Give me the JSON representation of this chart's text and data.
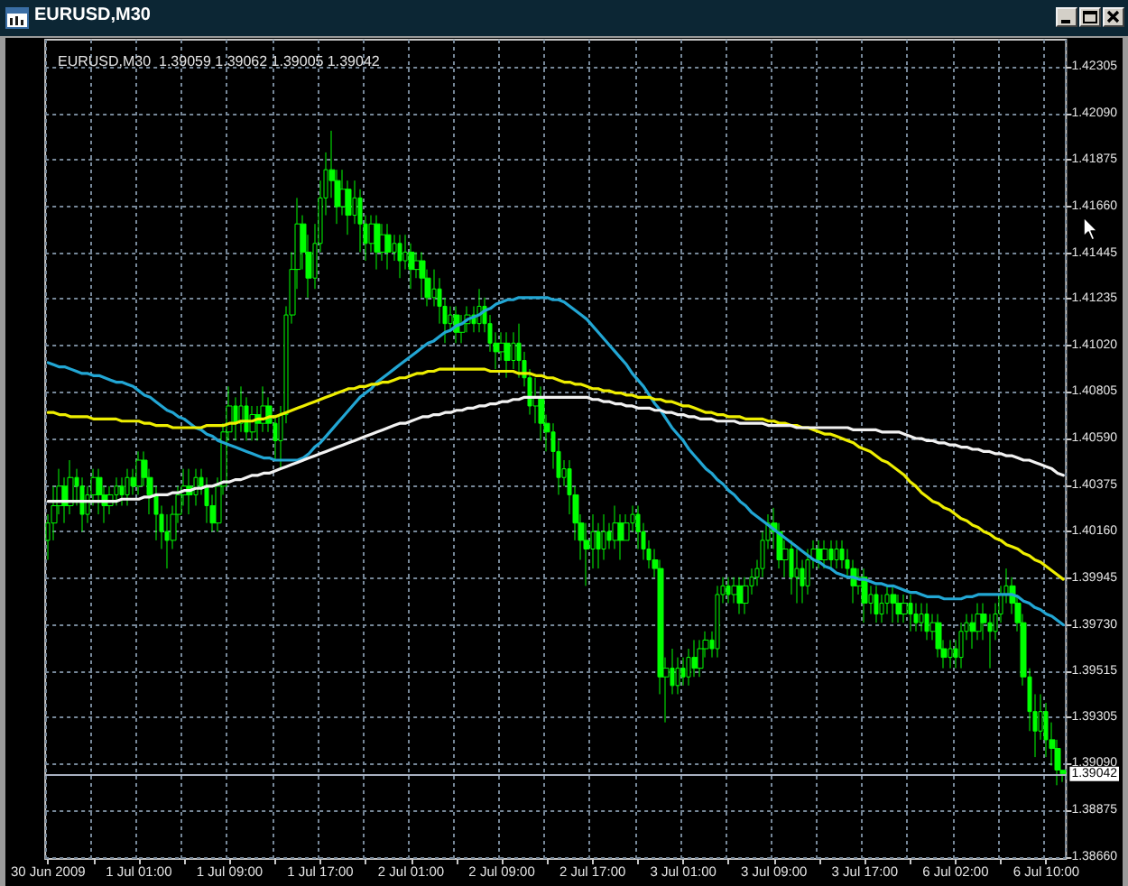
{
  "chart_data": {
    "type": "candlestick",
    "title": "EURUSD,M30",
    "subtitle": "EURUSD,M30  1.39059 1.39062 1.39005 1.39042",
    "color": "#00ff00",
    "categories": [
      "30 Jun 2009",
      null,
      null,
      null,
      null,
      null,
      null,
      null,
      null,
      null,
      null,
      null,
      null,
      null,
      null,
      null,
      "1 Jul 01:00",
      null,
      null,
      null,
      null,
      null,
      null,
      null,
      null,
      null,
      null,
      null,
      null,
      null,
      null,
      null,
      "1 Jul 09:00",
      null,
      null,
      null,
      null,
      null,
      null,
      null,
      null,
      null,
      null,
      null,
      null,
      null,
      null,
      null,
      "1 Jul 17:00",
      null,
      null,
      null,
      null,
      null,
      null,
      null,
      null,
      null,
      null,
      null,
      null,
      null,
      null,
      null,
      "2 Jul 01:00",
      null,
      null,
      null,
      null,
      null,
      null,
      null,
      null,
      null,
      null,
      null,
      null,
      null,
      null,
      null,
      "2 Jul 09:00",
      null,
      null,
      null,
      null,
      null,
      null,
      null,
      null,
      null,
      null,
      null,
      null,
      null,
      null,
      null,
      "2 Jul 17:00",
      null,
      null,
      null,
      null,
      null,
      null,
      null,
      null,
      null,
      null,
      null,
      null,
      null,
      null,
      null,
      "3 Jul 01:00",
      null,
      null,
      null,
      null,
      null,
      null,
      null,
      null,
      null,
      null,
      null,
      null,
      null,
      null,
      null,
      "3 Jul 09:00",
      null,
      null,
      null,
      null,
      null,
      null,
      null,
      null,
      null,
      null,
      null,
      null,
      null,
      null,
      null,
      "3 Jul 17:00",
      null,
      null,
      null,
      null,
      null,
      null,
      null,
      null,
      null,
      null,
      null,
      null,
      null,
      null,
      null,
      "6 Jul 02:00",
      null,
      null,
      null,
      null,
      null,
      null,
      null,
      null,
      null,
      null,
      null,
      null,
      null,
      null,
      null,
      "6 Jul 10:00",
      null,
      null,
      null
    ],
    "ohlc": [
      [
        1.4012,
        1.4024,
        1.4003,
        1.402
      ],
      [
        1.402,
        1.4037,
        1.4012,
        1.4028
      ],
      [
        1.4028,
        1.4045,
        1.4024,
        1.4037
      ],
      [
        1.4037,
        1.4041,
        1.402,
        1.4028
      ],
      [
        1.4028,
        1.4049,
        1.4024,
        1.4041
      ],
      [
        1.4041,
        1.4045,
        1.4028,
        1.4037
      ],
      [
        1.4037,
        1.4041,
        1.4016,
        1.4024
      ],
      [
        1.4024,
        1.4037,
        1.402,
        1.4033
      ],
      [
        1.4033,
        1.4045,
        1.4028,
        1.4041
      ],
      [
        1.4041,
        1.4045,
        1.4024,
        1.4033
      ],
      [
        1.4033,
        1.4037,
        1.402,
        1.4028
      ],
      [
        1.4028,
        1.4037,
        1.4024,
        1.4033
      ],
      [
        1.4033,
        1.4041,
        1.4028,
        1.4037
      ],
      [
        1.4037,
        1.4041,
        1.4028,
        1.4033
      ],
      [
        1.4033,
        1.4045,
        1.4028,
        1.4041
      ],
      [
        1.4041,
        1.4045,
        1.4033,
        1.4037
      ],
      [
        1.4037,
        1.4053,
        1.4033,
        1.4049
      ],
      [
        1.4049,
        1.4053,
        1.4037,
        1.4041
      ],
      [
        1.4041,
        1.4045,
        1.4024,
        1.4033
      ],
      [
        1.4033,
        1.4037,
        1.4012,
        1.4024
      ],
      [
        1.4024,
        1.4028,
        1.4008,
        1.4016
      ],
      [
        1.4016,
        1.4024,
        1.3999,
        1.4012
      ],
      [
        1.4012,
        1.4028,
        1.4008,
        1.4024
      ],
      [
        1.4024,
        1.4037,
        1.402,
        1.4033
      ],
      [
        1.4033,
        1.4045,
        1.4028,
        1.4037
      ],
      [
        1.4037,
        1.4045,
        1.4024,
        1.4033
      ],
      [
        1.4033,
        1.4045,
        1.4028,
        1.4041
      ],
      [
        1.4041,
        1.4045,
        1.4033,
        1.4037
      ],
      [
        1.4037,
        1.4041,
        1.402,
        1.4028
      ],
      [
        1.4028,
        1.4033,
        1.4016,
        1.402
      ],
      [
        1.402,
        1.4041,
        1.4016,
        1.4037
      ],
      [
        1.4037,
        1.4066,
        1.4033,
        1.4062
      ],
      [
        1.4062,
        1.4083,
        1.4058,
        1.4074
      ],
      [
        1.4074,
        1.4078,
        1.4058,
        1.4066
      ],
      [
        1.4066,
        1.4083,
        1.4062,
        1.4074
      ],
      [
        1.4074,
        1.4078,
        1.4058,
        1.4062
      ],
      [
        1.4062,
        1.4074,
        1.4058,
        1.407
      ],
      [
        1.407,
        1.4074,
        1.4058,
        1.4066
      ],
      [
        1.4066,
        1.4083,
        1.4062,
        1.4074
      ],
      [
        1.4074,
        1.4078,
        1.4062,
        1.4066
      ],
      [
        1.4066,
        1.407,
        1.4049,
        1.4058
      ],
      [
        1.4058,
        1.4074,
        1.4045,
        1.407
      ],
      [
        1.407,
        1.412,
        1.4066,
        1.4116
      ],
      [
        1.4116,
        1.4145,
        1.4112,
        1.4137
      ],
      [
        1.4137,
        1.417,
        1.4128,
        1.4158
      ],
      [
        1.4158,
        1.4162,
        1.4137,
        1.4145
      ],
      [
        1.4145,
        1.4153,
        1.4124,
        1.4133
      ],
      [
        1.4133,
        1.4158,
        1.4128,
        1.4149
      ],
      [
        1.4149,
        1.4178,
        1.4145,
        1.417
      ],
      [
        1.417,
        1.4191,
        1.4162,
        1.4183
      ],
      [
        1.4183,
        1.4201,
        1.417,
        1.4178
      ],
      [
        1.4178,
        1.4183,
        1.4158,
        1.4166
      ],
      [
        1.4166,
        1.4183,
        1.4162,
        1.4174
      ],
      [
        1.4174,
        1.4178,
        1.4153,
        1.4162
      ],
      [
        1.4162,
        1.4178,
        1.4158,
        1.417
      ],
      [
        1.417,
        1.4174,
        1.4145,
        1.4158
      ],
      [
        1.4158,
        1.4162,
        1.4141,
        1.4149
      ],
      [
        1.4149,
        1.4162,
        1.4145,
        1.4158
      ],
      [
        1.4158,
        1.4162,
        1.4137,
        1.4145
      ],
      [
        1.4145,
        1.4158,
        1.4141,
        1.4153
      ],
      [
        1.4153,
        1.4158,
        1.4137,
        1.4145
      ],
      [
        1.4145,
        1.4153,
        1.4141,
        1.4149
      ],
      [
        1.4149,
        1.4153,
        1.4133,
        1.4141
      ],
      [
        1.4141,
        1.4153,
        1.4137,
        1.4145
      ],
      [
        1.4145,
        1.4149,
        1.4128,
        1.4137
      ],
      [
        1.4137,
        1.4145,
        1.4133,
        1.4141
      ],
      [
        1.4141,
        1.4145,
        1.4124,
        1.4133
      ],
      [
        1.4133,
        1.4137,
        1.412,
        1.4124
      ],
      [
        1.4124,
        1.4137,
        1.412,
        1.4128
      ],
      [
        1.4128,
        1.4133,
        1.4112,
        1.412
      ],
      [
        1.412,
        1.4124,
        1.4103,
        1.4112
      ],
      [
        1.4112,
        1.412,
        1.4108,
        1.4116
      ],
      [
        1.4116,
        1.412,
        1.4103,
        1.4108
      ],
      [
        1.4108,
        1.4116,
        1.4103,
        1.4112
      ],
      [
        1.4112,
        1.412,
        1.4108,
        1.4116
      ],
      [
        1.4116,
        1.412,
        1.4108,
        1.4112
      ],
      [
        1.4112,
        1.4128,
        1.4108,
        1.412
      ],
      [
        1.412,
        1.4124,
        1.4108,
        1.4112
      ],
      [
        1.4112,
        1.4116,
        1.4099,
        1.4103
      ],
      [
        1.4103,
        1.4108,
        1.4091,
        1.4099
      ],
      [
        1.4099,
        1.4108,
        1.4095,
        1.4103
      ],
      [
        1.4103,
        1.4108,
        1.4087,
        1.4095
      ],
      [
        1.4095,
        1.4108,
        1.4091,
        1.4103
      ],
      [
        1.4103,
        1.4112,
        1.4087,
        1.4095
      ],
      [
        1.4095,
        1.4099,
        1.4083,
        1.4087
      ],
      [
        1.4087,
        1.4091,
        1.407,
        1.4074
      ],
      [
        1.4074,
        1.4087,
        1.4066,
        1.4078
      ],
      [
        1.4078,
        1.4083,
        1.4058,
        1.4066
      ],
      [
        1.4066,
        1.407,
        1.4053,
        1.4062
      ],
      [
        1.4062,
        1.4066,
        1.4045,
        1.4053
      ],
      [
        1.4053,
        1.4058,
        1.4033,
        1.4041
      ],
      [
        1.4041,
        1.4049,
        1.4037,
        1.4045
      ],
      [
        1.4045,
        1.4049,
        1.4024,
        1.4033
      ],
      [
        1.4033,
        1.4037,
        1.4012,
        1.402
      ],
      [
        1.402,
        1.4024,
        1.4003,
        1.4012
      ],
      [
        1.4012,
        1.402,
        1.3991,
        1.4008
      ],
      [
        1.4008,
        1.4024,
        1.3999,
        1.4016
      ],
      [
        1.4016,
        1.402,
        1.3999,
        1.4008
      ],
      [
        1.4008,
        1.4024,
        1.4003,
        1.4016
      ],
      [
        1.4016,
        1.402,
        1.4008,
        1.4012
      ],
      [
        1.4012,
        1.4028,
        1.4008,
        1.402
      ],
      [
        1.402,
        1.4024,
        1.4003,
        1.4012
      ],
      [
        1.4012,
        1.4024,
        1.4012,
        1.402
      ],
      [
        1.402,
        1.4028,
        1.4016,
        1.4024
      ],
      [
        1.4024,
        1.4028,
        1.4008,
        1.4016
      ],
      [
        1.4016,
        1.402,
        1.4003,
        1.4008
      ],
      [
        1.4008,
        1.4012,
        1.3999,
        1.4003
      ],
      [
        1.4003,
        1.4008,
        1.3995,
        1.3999
      ],
      [
        1.3999,
        1.4003,
        1.3941,
        1.3949
      ],
      [
        1.3949,
        1.3958,
        1.3928,
        1.3953
      ],
      [
        1.3953,
        1.3962,
        1.3941,
        1.3945
      ],
      [
        1.3945,
        1.3958,
        1.3941,
        1.3953
      ],
      [
        1.3953,
        1.3958,
        1.3945,
        1.3949
      ],
      [
        1.3949,
        1.3962,
        1.3945,
        1.3958
      ],
      [
        1.3958,
        1.3966,
        1.3949,
        1.3953
      ],
      [
        1.3953,
        1.3966,
        1.3949,
        1.3962
      ],
      [
        1.3962,
        1.397,
        1.3958,
        1.3966
      ],
      [
        1.3966,
        1.397,
        1.3958,
        1.3962
      ],
      [
        1.3962,
        1.3991,
        1.3958,
        1.3987
      ],
      [
        1.3987,
        1.3995,
        1.3983,
        1.3991
      ],
      [
        1.3991,
        1.3995,
        1.3983,
        1.3987
      ],
      [
        1.3987,
        1.3995,
        1.3983,
        1.3991
      ],
      [
        1.3991,
        1.3995,
        1.3978,
        1.3983
      ],
      [
        1.3983,
        1.3995,
        1.3978,
        1.3991
      ],
      [
        1.3991,
        1.3999,
        1.3987,
        1.3995
      ],
      [
        1.3995,
        1.4003,
        1.3991,
        1.3999
      ],
      [
        1.3999,
        1.4016,
        1.3995,
        1.4012
      ],
      [
        1.4012,
        1.4024,
        1.4008,
        1.402
      ],
      [
        1.402,
        1.4027,
        1.4008,
        1.4016
      ],
      [
        1.4016,
        1.402,
        1.3999,
        1.4003
      ],
      [
        1.4003,
        1.4012,
        1.3995,
        1.4008
      ],
      [
        1.4008,
        1.4012,
        1.3987,
        1.3995
      ],
      [
        1.3995,
        1.4008,
        1.3983,
        1.3999
      ],
      [
        1.3999,
        1.4003,
        1.3983,
        1.3991
      ],
      [
        1.3991,
        1.4008,
        1.3987,
        1.4003
      ],
      [
        1.4003,
        1.4012,
        1.3999,
        1.4008
      ],
      [
        1.4008,
        1.4012,
        1.3999,
        1.4003
      ],
      [
        1.4003,
        1.4012,
        1.3999,
        1.4008
      ],
      [
        1.4008,
        1.4012,
        1.3999,
        1.4003
      ],
      [
        1.4003,
        1.4012,
        1.3999,
        1.4008
      ],
      [
        1.4008,
        1.4012,
        1.3999,
        1.4003
      ],
      [
        1.4003,
        1.4008,
        1.3995,
        1.3999
      ],
      [
        1.3999,
        1.4003,
        1.3983,
        1.3991
      ],
      [
        1.3991,
        1.3999,
        1.3987,
        1.3995
      ],
      [
        1.3995,
        1.3999,
        1.3974,
        1.3983
      ],
      [
        1.3983,
        1.3991,
        1.3978,
        1.3987
      ],
      [
        1.3987,
        1.3991,
        1.3974,
        1.3978
      ],
      [
        1.3978,
        1.3987,
        1.3974,
        1.3983
      ],
      [
        1.3983,
        1.3991,
        1.3978,
        1.3987
      ],
      [
        1.3987,
        1.3991,
        1.3974,
        1.3983
      ],
      [
        1.3983,
        1.3987,
        1.3974,
        1.3978
      ],
      [
        1.3978,
        1.3987,
        1.3974,
        1.3983
      ],
      [
        1.3983,
        1.3987,
        1.397,
        1.3978
      ],
      [
        1.3978,
        1.3983,
        1.397,
        1.3974
      ],
      [
        1.3974,
        1.3983,
        1.397,
        1.3978
      ],
      [
        1.3978,
        1.3983,
        1.3966,
        1.397
      ],
      [
        1.397,
        1.3978,
        1.3966,
        1.3974
      ],
      [
        1.3974,
        1.3978,
        1.3958,
        1.3962
      ],
      [
        1.3962,
        1.3966,
        1.3953,
        1.3958
      ],
      [
        1.3958,
        1.3966,
        1.3953,
        1.3962
      ],
      [
        1.3962,
        1.3966,
        1.3953,
        1.3958
      ],
      [
        1.3958,
        1.3974,
        1.3953,
        1.397
      ],
      [
        1.397,
        1.3978,
        1.3966,
        1.3974
      ],
      [
        1.3974,
        1.3978,
        1.3962,
        1.397
      ],
      [
        1.397,
        1.3983,
        1.3966,
        1.3978
      ],
      [
        1.3978,
        1.3983,
        1.3966,
        1.3974
      ],
      [
        1.3974,
        1.3978,
        1.3953,
        1.397
      ],
      [
        1.397,
        1.3983,
        1.3966,
        1.3978
      ],
      [
        1.3978,
        1.3991,
        1.3974,
        1.3987
      ],
      [
        1.3987,
        1.3999,
        1.3983,
        1.3991
      ],
      [
        1.3991,
        1.3995,
        1.3978,
        1.3983
      ],
      [
        1.3983,
        1.3987,
        1.397,
        1.3974
      ],
      [
        1.3974,
        1.3978,
        1.3945,
        1.3949
      ],
      [
        1.3949,
        1.3953,
        1.3924,
        1.3933
      ],
      [
        1.3933,
        1.3941,
        1.3912,
        1.3924
      ],
      [
        1.3924,
        1.3941,
        1.392,
        1.3933
      ],
      [
        1.3933,
        1.3937,
        1.3912,
        1.392
      ],
      [
        1.392,
        1.3928,
        1.3908,
        1.3916
      ],
      [
        1.3916,
        1.392,
        1.3899,
        1.3906
      ],
      [
        1.39059,
        1.39062,
        1.39005,
        1.39042
      ]
    ],
    "series": [
      {
        "type": "line",
        "color": "#22a6d4",
        "values": [
          1.4094,
          1.4093,
          1.4092,
          1.4092,
          1.4091,
          1.409,
          1.4089,
          1.4089,
          1.4088,
          1.4088,
          1.4087,
          1.4086,
          1.4085,
          1.4085,
          1.4084,
          1.4083,
          1.4081,
          1.4079,
          1.4078,
          1.4076,
          1.4074,
          1.4072,
          1.4071,
          1.4069,
          1.4068,
          1.4066,
          1.4064,
          1.4063,
          1.4061,
          1.406,
          1.4058,
          1.4057,
          1.4056,
          1.4055,
          1.4054,
          1.4053,
          1.4052,
          1.4051,
          1.405,
          1.405,
          1.4049,
          1.4049,
          1.4049,
          1.4049,
          1.4049,
          1.405,
          1.4052,
          1.4055,
          1.4057,
          1.406,
          1.4063,
          1.4066,
          1.4069,
          1.4072,
          1.4075,
          1.4078,
          1.408,
          1.4082,
          1.4085,
          1.4087,
          1.4089,
          1.4091,
          1.4093,
          1.4095,
          1.4097,
          1.4099,
          1.4101,
          1.4103,
          1.4104,
          1.4106,
          1.4108,
          1.4109,
          1.4111,
          1.4112,
          1.4114,
          1.4115,
          1.4116,
          1.4118,
          1.4119,
          1.4121,
          1.4122,
          1.4123,
          1.4123,
          1.4124,
          1.4124,
          1.4124,
          1.4124,
          1.4124,
          1.4124,
          1.4123,
          1.4123,
          1.4122,
          1.412,
          1.4118,
          1.4116,
          1.4114,
          1.4111,
          1.4108,
          1.4105,
          1.4102,
          1.4099,
          1.4096,
          1.4093,
          1.4089,
          1.4086,
          1.4083,
          1.4079,
          1.4075,
          1.4072,
          1.4068,
          1.4064,
          1.4061,
          1.4058,
          1.4054,
          1.4051,
          1.4048,
          1.4045,
          1.4043,
          1.404,
          1.4038,
          1.4035,
          1.4033,
          1.403,
          1.4028,
          1.4025,
          1.4023,
          1.4021,
          1.4019,
          1.4017,
          1.4015,
          1.4013,
          1.4011,
          1.4009,
          1.4007,
          1.4005,
          1.4003,
          1.4002,
          1.4,
          1.3999,
          1.3997,
          1.3996,
          1.3995,
          1.3995,
          1.3994,
          1.3994,
          1.3993,
          1.3992,
          1.3992,
          1.3991,
          1.3991,
          1.399,
          1.3989,
          1.3988,
          1.3988,
          1.3987,
          1.3986,
          1.3986,
          1.3986,
          1.3985,
          1.3985,
          1.3985,
          1.3985,
          1.3986,
          1.3986,
          1.3987,
          1.3987,
          1.3987,
          1.3987,
          1.3987,
          1.3987,
          1.3987,
          1.3986,
          1.3984,
          1.3983,
          1.3981,
          1.398,
          1.3978,
          1.3977,
          1.3975,
          1.3973
        ]
      },
      {
        "type": "line",
        "color": "#eeee00",
        "values": [
          1.4071,
          1.4071,
          1.407,
          1.407,
          1.4069,
          1.4069,
          1.4069,
          1.4069,
          1.4068,
          1.4068,
          1.4068,
          1.4068,
          1.4068,
          1.4067,
          1.4067,
          1.4067,
          1.4067,
          1.4066,
          1.4066,
          1.4065,
          1.4065,
          1.4065,
          1.4064,
          1.4064,
          1.4064,
          1.4064,
          1.4064,
          1.4064,
          1.4065,
          1.4065,
          1.4065,
          1.4065,
          1.4066,
          1.4066,
          1.4067,
          1.4067,
          1.4067,
          1.4068,
          1.4068,
          1.4069,
          1.4069,
          1.407,
          1.4071,
          1.4072,
          1.4073,
          1.4074,
          1.4075,
          1.4076,
          1.4077,
          1.4078,
          1.4079,
          1.408,
          1.4081,
          1.4082,
          1.4082,
          1.4083,
          1.4083,
          1.4084,
          1.4084,
          1.4085,
          1.4085,
          1.4086,
          1.4087,
          1.4087,
          1.4088,
          1.4089,
          1.4089,
          1.409,
          1.409,
          1.4091,
          1.4091,
          1.4091,
          1.4091,
          1.4091,
          1.4091,
          1.4091,
          1.4091,
          1.4091,
          1.409,
          1.409,
          1.409,
          1.409,
          1.409,
          1.4089,
          1.4089,
          1.4089,
          1.4088,
          1.4088,
          1.4087,
          1.4087,
          1.4086,
          1.4085,
          1.4085,
          1.4084,
          1.4084,
          1.4083,
          1.4082,
          1.4082,
          1.4081,
          1.4081,
          1.408,
          1.408,
          1.4079,
          1.4079,
          1.4078,
          1.4078,
          1.4078,
          1.4077,
          1.4077,
          1.4076,
          1.4076,
          1.4075,
          1.4074,
          1.4074,
          1.4073,
          1.4072,
          1.4071,
          1.4071,
          1.407,
          1.407,
          1.4069,
          1.4069,
          1.4069,
          1.4068,
          1.4068,
          1.4068,
          1.4068,
          1.4067,
          1.4067,
          1.4066,
          1.4066,
          1.4065,
          1.4065,
          1.4064,
          1.4064,
          1.4063,
          1.4062,
          1.4061,
          1.4061,
          1.406,
          1.4059,
          1.4058,
          1.4057,
          1.4055,
          1.4054,
          1.4053,
          1.4051,
          1.4049,
          1.4048,
          1.4046,
          1.4044,
          1.4042,
          1.4039,
          1.4037,
          1.4034,
          1.4032,
          1.403,
          1.4029,
          1.4027,
          1.4026,
          1.4024,
          1.4022,
          1.4021,
          1.4019,
          1.4018,
          1.4016,
          1.4015,
          1.4013,
          1.4012,
          1.401,
          1.4009,
          1.4008,
          1.4006,
          1.4005,
          1.4003,
          1.4002,
          1.4,
          1.3998,
          1.3996,
          1.3994
        ]
      },
      {
        "type": "line",
        "color": "#f2f2f2",
        "values": [
          1.403,
          1.403,
          1.403,
          1.403,
          1.403,
          1.403,
          1.403,
          1.403,
          1.403,
          1.403,
          1.403,
          1.403,
          1.403,
          1.4031,
          1.4031,
          1.4031,
          1.4031,
          1.4032,
          1.4032,
          1.4033,
          1.4033,
          1.4033,
          1.4034,
          1.4034,
          1.4035,
          1.4035,
          1.4036,
          1.4036,
          1.4037,
          1.4037,
          1.4038,
          1.4039,
          1.4039,
          1.404,
          1.404,
          1.4041,
          1.4042,
          1.4042,
          1.4043,
          1.4043,
          1.4044,
          1.4045,
          1.4046,
          1.4047,
          1.4048,
          1.4049,
          1.405,
          1.4051,
          1.4052,
          1.4053,
          1.4054,
          1.4055,
          1.4056,
          1.4057,
          1.4058,
          1.4059,
          1.406,
          1.4061,
          1.4062,
          1.4063,
          1.4064,
          1.4065,
          1.4066,
          1.4066,
          1.4067,
          1.4068,
          1.4069,
          1.4069,
          1.407,
          1.407,
          1.4071,
          1.4071,
          1.4072,
          1.4072,
          1.4073,
          1.4073,
          1.4074,
          1.4074,
          1.4075,
          1.4075,
          1.4076,
          1.4076,
          1.4077,
          1.4077,
          1.4078,
          1.4078,
          1.4078,
          1.4078,
          1.4078,
          1.4078,
          1.4078,
          1.4078,
          1.4078,
          1.4078,
          1.4078,
          1.4078,
          1.4077,
          1.4077,
          1.4076,
          1.4076,
          1.4075,
          1.4075,
          1.4074,
          1.4074,
          1.4073,
          1.4073,
          1.4073,
          1.4072,
          1.4072,
          1.4071,
          1.4071,
          1.407,
          1.407,
          1.4069,
          1.4069,
          1.4068,
          1.4068,
          1.4068,
          1.4067,
          1.4067,
          1.4067,
          1.4067,
          1.4066,
          1.4066,
          1.4066,
          1.4066,
          1.4066,
          1.4065,
          1.4065,
          1.4065,
          1.4065,
          1.4065,
          1.4064,
          1.4064,
          1.4064,
          1.4064,
          1.4064,
          1.4064,
          1.4064,
          1.4064,
          1.4064,
          1.4064,
          1.4063,
          1.4063,
          1.4063,
          1.4063,
          1.4063,
          1.4062,
          1.4062,
          1.4062,
          1.4062,
          1.4061,
          1.406,
          1.4059,
          1.4059,
          1.4058,
          1.4058,
          1.4057,
          1.4057,
          1.4056,
          1.4056,
          1.4055,
          1.4055,
          1.4054,
          1.4054,
          1.4053,
          1.4053,
          1.4052,
          1.4052,
          1.4051,
          1.4051,
          1.405,
          1.4049,
          1.4049,
          1.4048,
          1.4047,
          1.4046,
          1.4045,
          1.4043,
          1.4042
        ]
      }
    ],
    "ylim": [
      1.3865,
      1.4243
    ],
    "yticks": [
      {
        "value": 1.3866,
        "label": "1.38660"
      },
      1.38875,
      {
        "value": 1.3909,
        "label": "1.39090"
      },
      1.39305,
      1.39515,
      {
        "value": 1.3973,
        "label": "1.39730"
      },
      1.39945,
      {
        "value": 1.4016,
        "label": "1.40160"
      },
      1.40375,
      {
        "value": 1.4059,
        "label": "1.40590"
      },
      1.40805,
      {
        "value": 1.4102,
        "label": "1.41020"
      },
      1.41235,
      1.41445,
      {
        "value": 1.4166,
        "label": "1.41660"
      },
      1.41875,
      {
        "value": 1.4209,
        "label": "1.42090"
      },
      1.42305
    ],
    "grid": true,
    "ref_lines": [
      {
        "axis": "y",
        "value": 1.39042,
        "label": "1.39042",
        "color": "#a9b1c2"
      }
    ]
  }
}
